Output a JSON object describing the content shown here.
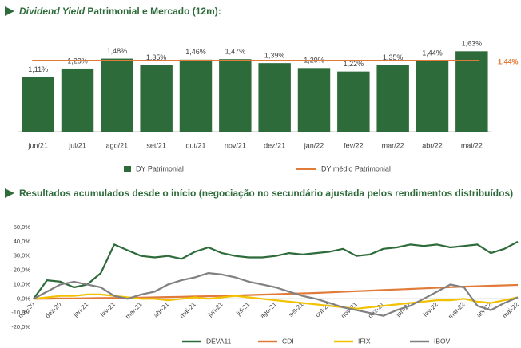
{
  "chart_data": [
    {
      "type": "bar",
      "title_emphasis": "Dividend Yield",
      "title": "Patrimonial e Mercado (12m):",
      "categories": [
        "jun/21",
        "jul/21",
        "ago/21",
        "set/21",
        "out/21",
        "nov/21",
        "dez/21",
        "jan/22",
        "fev/22",
        "mar/22",
        "abr/22",
        "mai/22"
      ],
      "series": [
        {
          "name": "DY Patrimonial",
          "color": "#2e6b3a",
          "values": [
            1.11,
            1.28,
            1.48,
            1.35,
            1.46,
            1.47,
            1.39,
            1.29,
            1.22,
            1.35,
            1.44,
            1.63
          ],
          "value_labels": [
            "1,11%",
            "1,28%",
            "1,48%",
            "1,35%",
            "1,46%",
            "1,47%",
            "1,39%",
            "1,29%",
            "1,22%",
            "1,35%",
            "1,44%",
            "1,63%"
          ]
        }
      ],
      "reference_line": {
        "name": "DY médio Patrimonial",
        "value": 1.44,
        "label": "1,44%",
        "color": "#e07b39"
      },
      "ylim": [
        0,
        1.7
      ]
    },
    {
      "type": "line",
      "title": "Resultados acumulados desde o início (negociação no secundário ajustada pelos rendimentos distribuídos)",
      "categories": [
        "nov-20",
        null,
        "dez-20",
        null,
        "jan-21",
        null,
        "fev-21",
        null,
        "mar-21",
        null,
        "abr-21",
        null,
        "mai-21",
        null,
        "jun-21",
        null,
        "jul-21",
        null,
        "ago-21",
        null,
        "set-21",
        null,
        "out-21",
        null,
        "nov-21",
        null,
        "dez-21",
        null,
        "jan-22",
        null,
        "fev-22",
        null,
        "mar-22",
        null,
        "abr-22",
        null,
        "mai-22"
      ],
      "series": [
        {
          "name": "DEVA11",
          "color": "#2e6b3a",
          "values": [
            0,
            13,
            12,
            8,
            10,
            18,
            38,
            34,
            30,
            29,
            30,
            28,
            33,
            36,
            32,
            30,
            29,
            29,
            30,
            32,
            31,
            32,
            33,
            35,
            30,
            31,
            35,
            36,
            38,
            37,
            38,
            36,
            37,
            38,
            32,
            35,
            40
          ]
        },
        {
          "name": "CDI",
          "color": "#e07b39",
          "values": [
            0,
            0.1,
            0.2,
            0.3,
            0.4,
            0.5,
            0.6,
            0.7,
            0.8,
            1.0,
            1.2,
            1.4,
            1.6,
            1.8,
            2.0,
            2.3,
            2.6,
            2.9,
            3.2,
            3.5,
            3.8,
            4.1,
            4.5,
            4.9,
            5.3,
            5.7,
            6.1,
            6.5,
            6.9,
            7.3,
            7.7,
            8.1,
            8.5,
            8.8,
            9.1,
            9.4,
            9.7
          ]
        },
        {
          "name": "IFIX",
          "color": "#f2c200",
          "values": [
            0,
            1,
            2,
            2,
            3,
            3,
            2,
            1,
            0,
            0,
            -1,
            0,
            1,
            0,
            1,
            2,
            1,
            0,
            -1,
            -2,
            -3,
            -4,
            -5,
            -6,
            -7,
            -6,
            -5,
            -4,
            -3,
            -2,
            -1,
            -1,
            0,
            -2,
            -3,
            -1,
            1
          ]
        },
        {
          "name": "IBOV",
          "color": "#808080",
          "values": [
            0,
            5,
            10,
            12,
            10,
            8,
            2,
            0,
            3,
            5,
            10,
            13,
            15,
            18,
            17,
            15,
            12,
            10,
            8,
            5,
            2,
            0,
            -3,
            -6,
            -8,
            -10,
            -12,
            -8,
            -5,
            0,
            5,
            10,
            8,
            -5,
            -8,
            -3,
            1
          ]
        }
      ],
      "ylim": [
        -20,
        50
      ],
      "yticks": [
        {
          "value": -20,
          "label": "-20,0%"
        },
        {
          "value": -10,
          "label": "-10,0%"
        },
        {
          "value": 0,
          "label": "0,0%"
        },
        {
          "value": 10,
          "label": "10,0%"
        },
        {
          "value": 20,
          "label": "20,0%"
        },
        {
          "value": 30,
          "label": "30,0%"
        },
        {
          "value": 40,
          "label": "40,0%"
        },
        {
          "value": 50,
          "label": "50,0%"
        }
      ],
      "grid": false
    }
  ]
}
